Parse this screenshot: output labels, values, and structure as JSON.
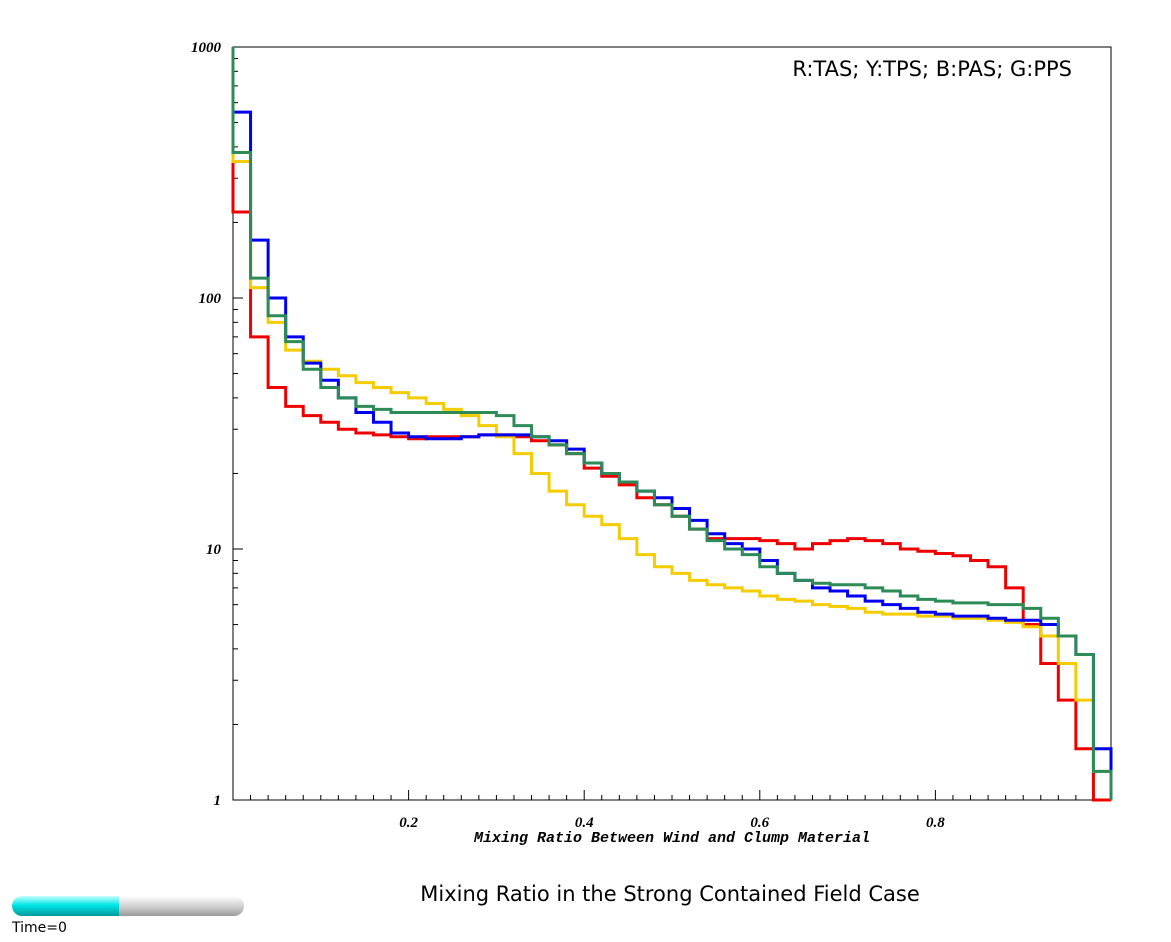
{
  "chart_data": {
    "type": "line",
    "step": true,
    "y_scale": "log",
    "xlim": [
      0.0,
      1.0
    ],
    "ylim": [
      1,
      1000
    ],
    "x_ticks": [
      0.2,
      0.4,
      0.6,
      0.8
    ],
    "x_tick_labels": [
      "0.2",
      "0.4",
      "0.6",
      "0.8"
    ],
    "y_ticks": [
      1,
      10,
      100,
      1000
    ],
    "y_tick_labels": [
      "1",
      "10",
      "100",
      "1000"
    ],
    "xlabel": "Mixing Ratio Between Wind and Clump Material",
    "ylabel": "",
    "legend_text": "R:TAS; Y:TPS; B:PAS; G:PPS",
    "legend_position": "top-right",
    "grid": false,
    "series": [
      {
        "key": "R",
        "color": "#ee0000",
        "x": [
          0.01,
          0.03,
          0.05,
          0.07,
          0.09,
          0.11,
          0.13,
          0.15,
          0.17,
          0.19,
          0.21,
          0.23,
          0.25,
          0.27,
          0.29,
          0.31,
          0.33,
          0.35,
          0.37,
          0.39,
          0.41,
          0.43,
          0.45,
          0.47,
          0.49,
          0.51,
          0.53,
          0.55,
          0.57,
          0.59,
          0.61,
          0.63,
          0.65,
          0.67,
          0.69,
          0.71,
          0.73,
          0.75,
          0.77,
          0.79,
          0.81,
          0.83,
          0.85,
          0.87,
          0.89,
          0.91,
          0.93,
          0.95,
          0.97,
          0.99
        ],
        "y": [
          220,
          70,
          44,
          37,
          34,
          32,
          30,
          29,
          28.5,
          28,
          27.5,
          28,
          28,
          28,
          28.5,
          28.5,
          28,
          27,
          26,
          24,
          21,
          19.5,
          18,
          16,
          15,
          13.5,
          12,
          11,
          11,
          11,
          10.8,
          10.5,
          10,
          10.5,
          10.8,
          11,
          10.8,
          10.5,
          10,
          9.8,
          9.6,
          9.4,
          9,
          8.5,
          7,
          5,
          3.5,
          2.5,
          1.6,
          1.0
        ]
      },
      {
        "key": "Y",
        "color": "#f5cc00",
        "x": [
          0.01,
          0.03,
          0.05,
          0.07,
          0.09,
          0.11,
          0.13,
          0.15,
          0.17,
          0.19,
          0.21,
          0.23,
          0.25,
          0.27,
          0.29,
          0.31,
          0.33,
          0.35,
          0.37,
          0.39,
          0.41,
          0.43,
          0.45,
          0.47,
          0.49,
          0.51,
          0.53,
          0.55,
          0.57,
          0.59,
          0.61,
          0.63,
          0.65,
          0.67,
          0.69,
          0.71,
          0.73,
          0.75,
          0.77,
          0.79,
          0.81,
          0.83,
          0.85,
          0.87,
          0.89,
          0.91,
          0.93,
          0.95,
          0.97,
          0.99
        ],
        "y": [
          350,
          110,
          80,
          62,
          56,
          52,
          49,
          46,
          44,
          42,
          40,
          38,
          36,
          34,
          31,
          28,
          24,
          20,
          17,
          15,
          13.5,
          12.5,
          11,
          9.5,
          8.5,
          8,
          7.5,
          7.2,
          7,
          6.8,
          6.5,
          6.3,
          6.2,
          6,
          5.9,
          5.8,
          5.6,
          5.5,
          5.5,
          5.4,
          5.4,
          5.3,
          5.3,
          5.2,
          5.1,
          4.9,
          4.5,
          3.5,
          2.5,
          1.3
        ]
      },
      {
        "key": "B",
        "color": "#0000ee",
        "x": [
          0.01,
          0.03,
          0.05,
          0.07,
          0.09,
          0.11,
          0.13,
          0.15,
          0.17,
          0.19,
          0.21,
          0.23,
          0.25,
          0.27,
          0.29,
          0.31,
          0.33,
          0.35,
          0.37,
          0.39,
          0.41,
          0.43,
          0.45,
          0.47,
          0.49,
          0.51,
          0.53,
          0.55,
          0.57,
          0.59,
          0.61,
          0.63,
          0.65,
          0.67,
          0.69,
          0.71,
          0.73,
          0.75,
          0.77,
          0.79,
          0.81,
          0.83,
          0.85,
          0.87,
          0.89,
          0.91,
          0.93,
          0.95,
          0.97,
          0.99
        ],
        "y": [
          550,
          170,
          100,
          70,
          55,
          47,
          40,
          35,
          32,
          29,
          28,
          27.5,
          27.5,
          28,
          28.5,
          28.5,
          28.5,
          28,
          27,
          25,
          22,
          20,
          18.5,
          17,
          16,
          14.5,
          13,
          11.5,
          10.5,
          10,
          9,
          8,
          7.5,
          7,
          6.8,
          6.5,
          6.2,
          6,
          5.8,
          5.6,
          5.5,
          5.4,
          5.4,
          5.3,
          5.2,
          5.2,
          5,
          4.5,
          3.8,
          1.6
        ]
      },
      {
        "key": "G",
        "color": "#2e8b57",
        "x": [
          0.01,
          0.03,
          0.05,
          0.07,
          0.09,
          0.11,
          0.13,
          0.15,
          0.17,
          0.19,
          0.21,
          0.23,
          0.25,
          0.27,
          0.29,
          0.31,
          0.33,
          0.35,
          0.37,
          0.39,
          0.41,
          0.43,
          0.45,
          0.47,
          0.49,
          0.51,
          0.53,
          0.55,
          0.57,
          0.59,
          0.61,
          0.63,
          0.65,
          0.67,
          0.69,
          0.71,
          0.73,
          0.75,
          0.77,
          0.79,
          0.81,
          0.83,
          0.85,
          0.87,
          0.89,
          0.91,
          0.93,
          0.95,
          0.97,
          0.99
        ],
        "y": [
          380,
          120,
          85,
          67,
          52,
          44,
          40,
          37,
          36,
          35,
          35,
          35,
          35,
          35,
          35,
          34,
          31,
          28,
          26,
          24,
          22,
          20,
          18.5,
          17,
          15,
          13.5,
          12,
          10.8,
          10,
          9.5,
          8.5,
          8,
          7.5,
          7.3,
          7.2,
          7.2,
          7,
          6.8,
          6.5,
          6.3,
          6.2,
          6.1,
          6.1,
          6,
          6,
          5.8,
          5.3,
          4.5,
          3.8,
          1.3
        ]
      }
    ]
  },
  "page": {
    "title": "Mixing Ratio in the Strong Contained Field Case",
    "time_label": "Time=0",
    "time_progress": 0.46
  }
}
